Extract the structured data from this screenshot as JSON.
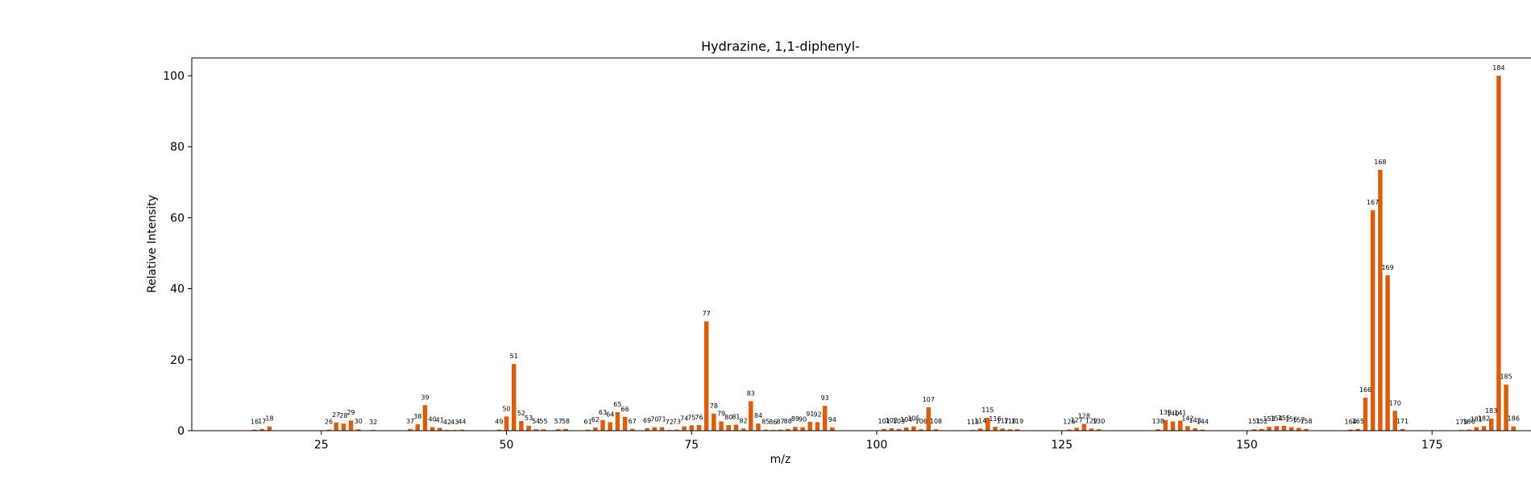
{
  "chart_data": {
    "type": "bar",
    "title": "Hydrazine, 1,1-diphenyl-",
    "xlabel": "m/z",
    "ylabel": "Relative Intensity",
    "xlim": [
      7.5,
      195
    ],
    "ylim": [
      0,
      105
    ],
    "xticks": [
      25,
      50,
      75,
      100,
      125,
      150,
      175
    ],
    "yticks": [
      0,
      20,
      40,
      60,
      80,
      100
    ],
    "grid": false,
    "bar_color": "#d95f0e",
    "x": [
      16,
      17,
      18,
      26,
      27,
      28,
      29,
      30,
      32,
      37,
      38,
      39,
      40,
      41,
      42,
      43,
      44,
      49,
      50,
      51,
      52,
      53,
      54,
      55,
      57,
      58,
      61,
      62,
      63,
      64,
      65,
      66,
      67,
      69,
      70,
      71,
      72,
      73,
      74,
      75,
      76,
      77,
      78,
      79,
      80,
      81,
      82,
      83,
      84,
      85,
      86,
      87,
      88,
      89,
      90,
      91,
      92,
      93,
      94,
      101,
      102,
      103,
      104,
      105,
      106,
      107,
      108,
      113,
      114,
      115,
      116,
      117,
      118,
      119,
      126,
      127,
      128,
      129,
      130,
      138,
      139,
      140,
      141,
      142,
      143,
      144,
      151,
      152,
      153,
      154,
      155,
      156,
      157,
      158,
      164,
      165,
      166,
      167,
      168,
      169,
      170,
      171,
      179,
      180,
      181,
      182,
      183,
      184,
      185,
      186
    ],
    "values": [
      0.3,
      0.5,
      1.2,
      0.3,
      2.3,
      2.0,
      2.9,
      0.4,
      0.2,
      0.5,
      1.8,
      7.2,
      1.0,
      0.8,
      0.2,
      0.2,
      0.3,
      0.3,
      4.0,
      18.8,
      2.7,
      1.4,
      0.4,
      0.4,
      0.4,
      0.5,
      0.3,
      0.9,
      3.0,
      2.4,
      5.2,
      3.9,
      0.5,
      0.7,
      1.0,
      1.0,
      0.2,
      0.3,
      1.2,
      1.5,
      1.6,
      30.8,
      4.8,
      2.6,
      1.6,
      1.7,
      0.6,
      8.3,
      2.0,
      0.3,
      0.2,
      0.3,
      0.5,
      1.1,
      1.0,
      2.5,
      2.4,
      7.0,
      0.9,
      0.5,
      0.7,
      0.5,
      0.9,
      1.2,
      0.4,
      6.6,
      0.4,
      0.2,
      0.6,
      3.6,
      1.1,
      0.6,
      0.4,
      0.4,
      0.3,
      0.8,
      1.9,
      0.6,
      0.4,
      0.4,
      3.0,
      2.6,
      2.8,
      1.3,
      0.7,
      0.3,
      0.4,
      0.5,
      1.1,
      1.3,
      1.4,
      1.0,
      0.8,
      0.5,
      0.3,
      0.5,
      9.3,
      62.1,
      73.5,
      43.8,
      5.6,
      0.5,
      0.2,
      0.3,
      1.0,
      1.3,
      3.4,
      100.0,
      13.0,
      1.2
    ],
    "labels": [
      "16",
      "17",
      "18",
      "26",
      "27",
      "28",
      "29",
      "30",
      "32",
      "37",
      "38",
      "39",
      "40",
      "41",
      "42",
      "43",
      "44",
      "49",
      "50",
      "51",
      "52",
      "53",
      "54",
      "55",
      "57",
      "58",
      "61",
      "62",
      "63",
      "64",
      "65",
      "66",
      "67",
      "69",
      "70",
      "71",
      "72",
      "73",
      "74",
      "75",
      "76",
      "77",
      "78",
      "79",
      "80",
      "81",
      "82",
      "83",
      "84",
      "85",
      "86",
      "87",
      "88",
      "89",
      "90",
      "91",
      "92",
      "93",
      "94",
      "101",
      "102",
      "103",
      "104",
      "105",
      "106",
      "107",
      "108",
      "113",
      "114",
      "115",
      "116",
      "117",
      "118",
      "119",
      "126",
      "127",
      "128",
      "129",
      "130",
      "138",
      "139",
      "140",
      "141",
      "142",
      "143",
      "144",
      "151",
      "152",
      "153",
      "154",
      "155",
      "156",
      "157",
      "158",
      "164",
      "165",
      "166",
      "167",
      "168",
      "169",
      "170",
      "171",
      "179",
      "180",
      "181",
      "182",
      "183",
      "184",
      "185",
      "186"
    ]
  }
}
